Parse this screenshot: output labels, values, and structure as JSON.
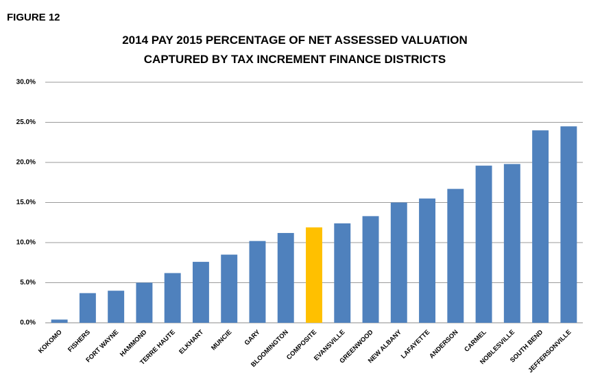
{
  "chart_data": {
    "type": "bar",
    "label": "FIGURE 12",
    "title": [
      "2014 PAY 2015 PERCENTAGE OF NET ASSESSED VALUATION",
      "CAPTURED BY TAX INCREMENT FINANCE DISTRICTS"
    ],
    "categories": [
      "KOKOMO",
      "FISHERS",
      "FORT WAYNE",
      "HAMMOND",
      "TERRE HAUTE",
      "ELKHART",
      "MUNCIE",
      "GARY",
      "BLOOMINGTON",
      "COMPOSITE",
      "EVANSVILLE",
      "GREENWOOD",
      "NEW ALBANY",
      "LAFAYETTE",
      "ANDERSON",
      "CARMEL",
      "NOBLESVILLE",
      "SOUTH BEND",
      "JEFFERSONVILLE"
    ],
    "values": [
      0.4,
      3.7,
      4.0,
      5.0,
      6.2,
      7.6,
      8.5,
      10.2,
      11.2,
      11.9,
      12.4,
      13.3,
      15.0,
      15.5,
      16.7,
      19.6,
      19.8,
      24.0,
      24.5
    ],
    "colors": [
      "#4f81bd",
      "#4f81bd",
      "#4f81bd",
      "#4f81bd",
      "#4f81bd",
      "#4f81bd",
      "#4f81bd",
      "#4f81bd",
      "#4f81bd",
      "#ffc000",
      "#4f81bd",
      "#4f81bd",
      "#4f81bd",
      "#4f81bd",
      "#4f81bd",
      "#4f81bd",
      "#4f81bd",
      "#4f81bd",
      "#4f81bd"
    ],
    "ylim": [
      0,
      30
    ],
    "yticks": [
      {
        "value": 0,
        "label": "0.0%"
      },
      {
        "value": 5,
        "label": "5.0%"
      },
      {
        "value": 10,
        "label": "10.0%"
      },
      {
        "value": 15,
        "label": "15.0%"
      },
      {
        "value": 20,
        "label": "20.0%"
      },
      {
        "value": 25,
        "label": "25.0%"
      },
      {
        "value": 30,
        "label": "30.0%"
      }
    ],
    "grid": true
  }
}
